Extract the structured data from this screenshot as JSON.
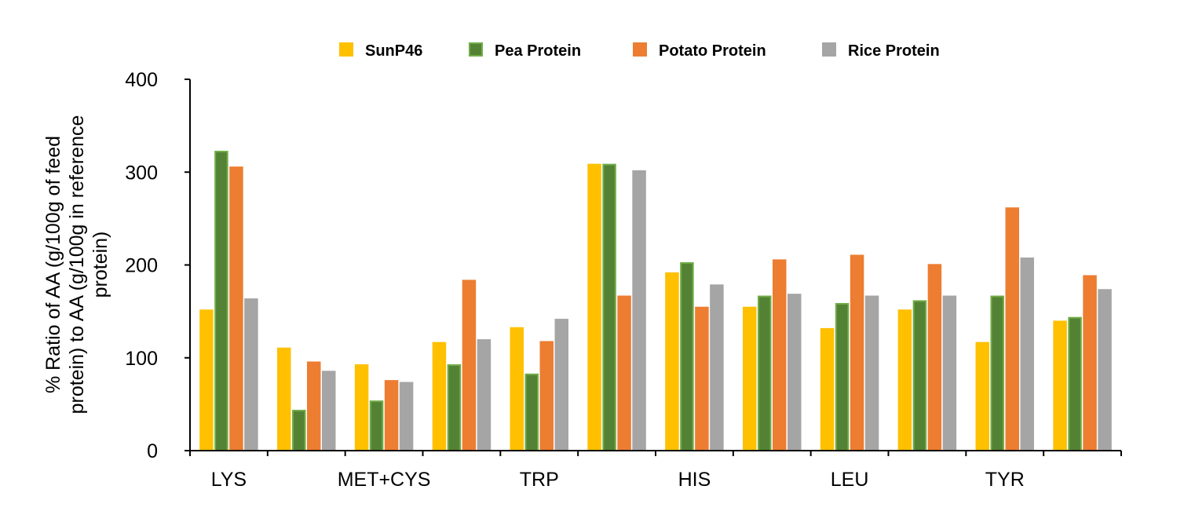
{
  "chart_data": {
    "type": "bar",
    "title": "",
    "xlabel": "",
    "ylabel_lines": [
      "% Ratio of AA (g/100g of feed",
      "protein) to AA (g/100g in reference",
      "protein)"
    ],
    "ylim": [
      0,
      400
    ],
    "yticks": [
      "0",
      "100",
      "200",
      "300",
      "400"
    ],
    "categories": [
      "LYS",
      "",
      "MET+CYS",
      "",
      "TRP",
      "",
      "HIS",
      "",
      "LEU",
      "",
      "TYR",
      ""
    ],
    "legend_position": "top",
    "series": [
      {
        "name": "SunP46",
        "color": "#FFC000",
        "border": "#FFC000",
        "values": [
          152,
          111,
          93,
          117,
          133,
          309,
          192,
          155,
          132,
          152,
          117,
          140
        ]
      },
      {
        "name": "Pea Protein",
        "color": "#548235",
        "border": "#70AD47",
        "values": [
          323,
          44,
          54,
          93,
          83,
          309,
          203,
          167,
          159,
          162,
          167,
          144
        ]
      },
      {
        "name": "Potato Protein",
        "color": "#ED7D31",
        "border": "#ED7D31",
        "values": [
          306,
          96,
          76,
          184,
          118,
          167,
          155,
          206,
          211,
          201,
          262,
          189
        ]
      },
      {
        "name": "Rice Protein",
        "color": "#A5A5A5",
        "border": "#A5A5A5",
        "values": [
          164,
          86,
          74,
          120,
          142,
          302,
          179,
          169,
          167,
          167,
          208,
          174
        ]
      }
    ]
  }
}
